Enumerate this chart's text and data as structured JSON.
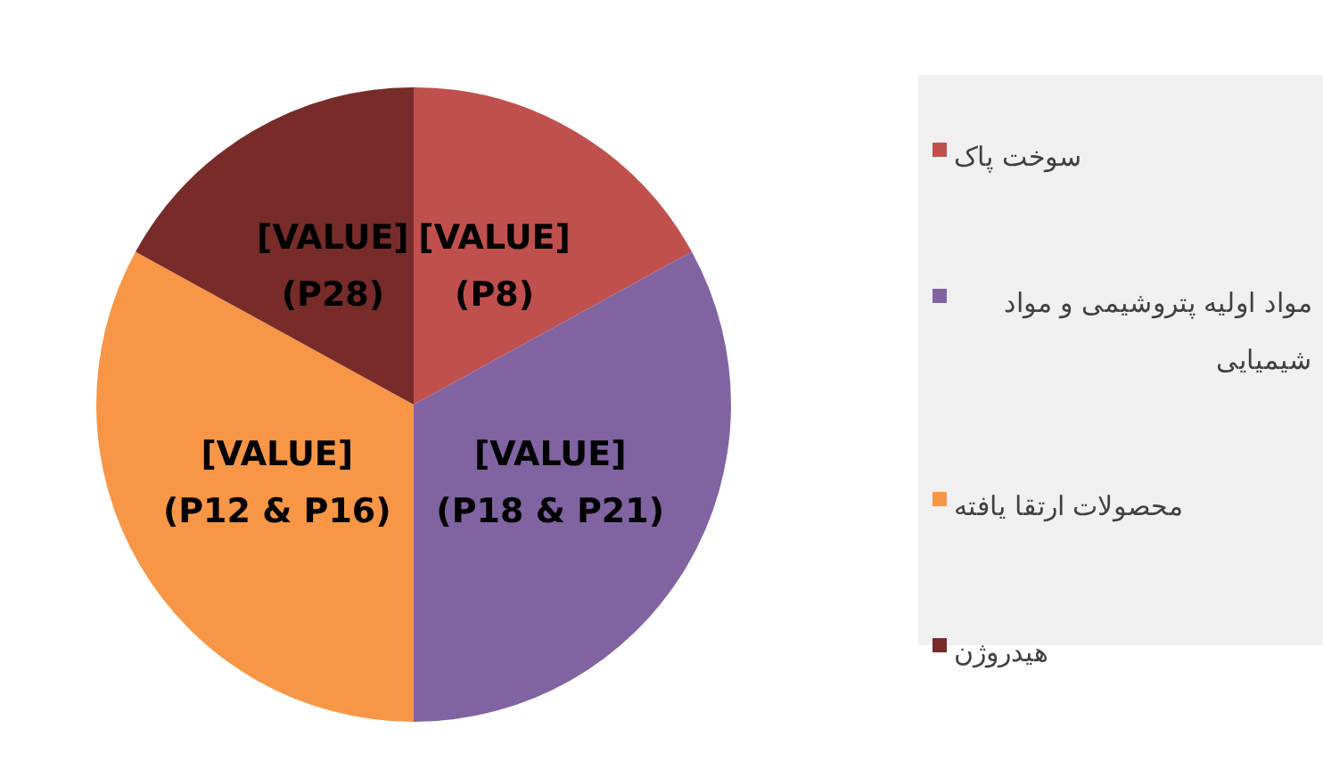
{
  "chart_data": {
    "type": "pie",
    "categories": [
      "سوخت پاک",
      "مواد اولیه پتروشیمی و مواد شیمیایی",
      "محصولات ارتقا یافته",
      "هیدروژن"
    ],
    "values": [
      17,
      33,
      33,
      17
    ],
    "colors": [
      "#c0504d",
      "#8064a2",
      "#f79646",
      "#772c2a"
    ],
    "value_labels": [
      "[VALUE]\n(P8)",
      "[VALUE]\n(P18 & P21)",
      "[VALUE]\n(P12 & P16)",
      "[VALUE]\n(P28)"
    ],
    "legend": "right"
  }
}
